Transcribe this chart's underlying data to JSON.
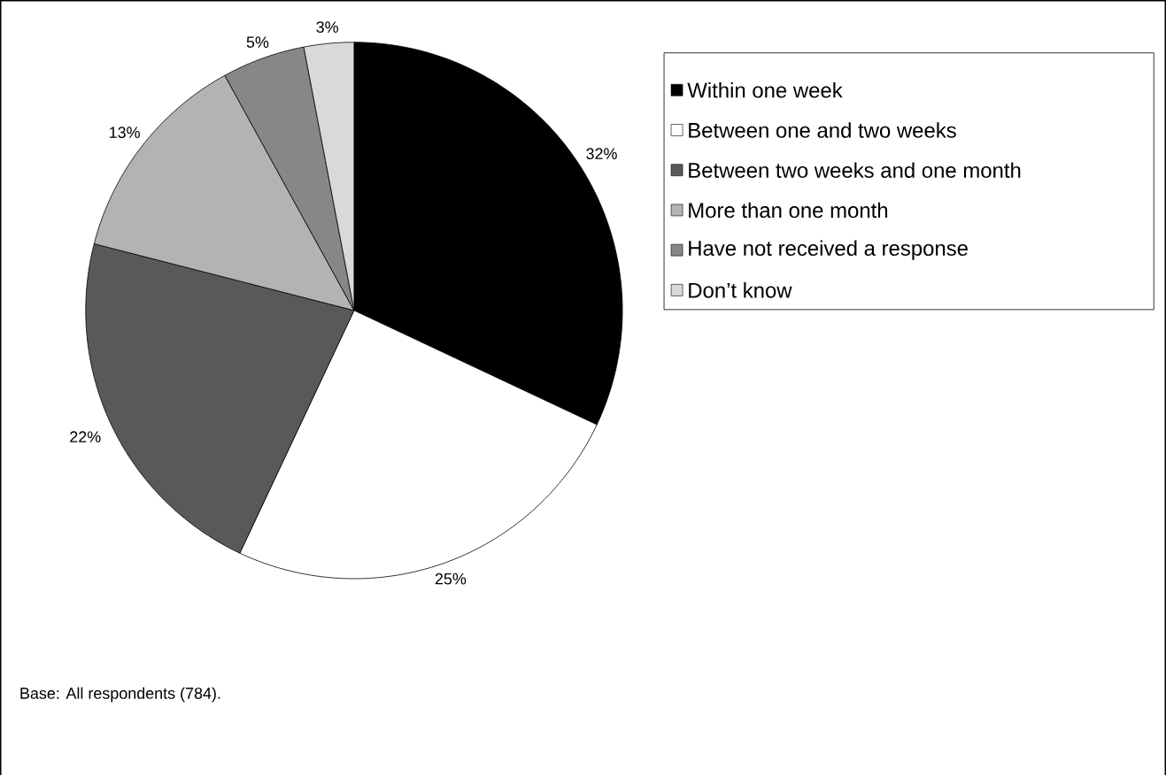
{
  "chart_data": {
    "type": "pie",
    "categories": [
      "Within one week",
      "Between one and two weeks",
      "Between two weeks and one month",
      "More than one month",
      "Have not received a response",
      "Don’t know"
    ],
    "values": [
      32,
      25,
      22,
      13,
      5,
      3
    ],
    "colors": [
      "#000000",
      "#ffffff",
      "#595959",
      "#b3b3b3",
      "#878787",
      "#d9d9d9"
    ],
    "value_labels": [
      "32%",
      "25%",
      "22%",
      "13%",
      "5%",
      "3%"
    ],
    "legend": "top right",
    "annotations": [
      "Base: All respondents (784)."
    ]
  }
}
